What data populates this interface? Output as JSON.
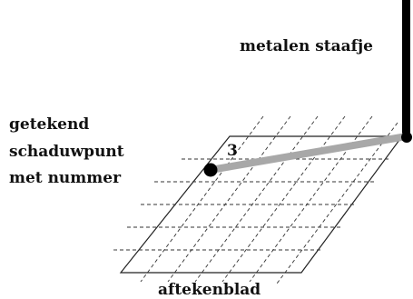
{
  "labels": {
    "rod": "metalen staafje",
    "shadow_point_line1": "getekend",
    "shadow_point_line2": "schaduwpunt",
    "shadow_point_line3": "met nummer",
    "sheet": "aftekenblad",
    "point_number": "3"
  },
  "colors": {
    "ink": "#111111",
    "shadow": "#a8a8a8",
    "rod": "#000000",
    "grid_line": "#333333"
  }
}
